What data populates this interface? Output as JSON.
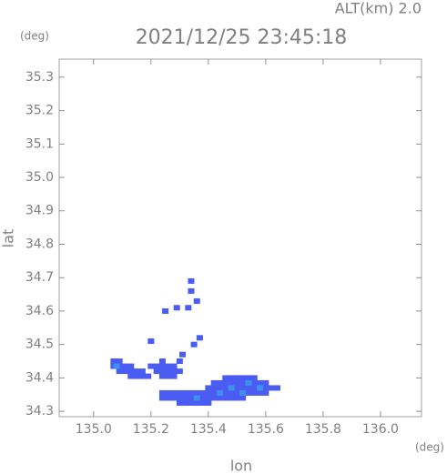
{
  "chart_data": {
    "type": "scatter",
    "title": "2021/12/25 23:45:18",
    "subtitle": "ALT(km) 2.0",
    "x_label": "lon",
    "y_label": "lat",
    "x_unit": "(deg)",
    "y_unit": "(deg)",
    "xlim": [
      134.88,
      136.143
    ],
    "ylim": [
      34.284,
      35.354
    ],
    "xticks": [
      {
        "value": 135,
        "label": "135.0"
      },
      135.2,
      135.4,
      135.6,
      135.8,
      {
        "value": 136,
        "label": "136.0"
      }
    ],
    "yticks": [
      34.3,
      34.4,
      34.5,
      34.6,
      34.7,
      34.8,
      34.9,
      {
        "value": 35,
        "label": "35.0"
      },
      35.1,
      35.2,
      35.3
    ],
    "grid": false,
    "series": [
      {
        "color": "#4a5cf2",
        "x": [
          135.46,
          135.48,
          135.5,
          135.52,
          135.54,
          135.56,
          135.42,
          135.44,
          135.46,
          135.48,
          135.5,
          135.52,
          135.54,
          135.56,
          135.58,
          135.6,
          135.4,
          135.42,
          135.44,
          135.46,
          135.48,
          135.5,
          135.52,
          135.54,
          135.56,
          135.58,
          135.6,
          135.62,
          135.64,
          135.4,
          135.42,
          135.44,
          135.46,
          135.48,
          135.5,
          135.52,
          135.54,
          135.56,
          135.58,
          135.6,
          135.38,
          135.4,
          135.42,
          135.44,
          135.46,
          135.48,
          135.5,
          135.52,
          135.24,
          135.26,
          135.28,
          135.3,
          135.32,
          135.34,
          135.36,
          135.38,
          135.24,
          135.26,
          135.28,
          135.3,
          135.32,
          135.34,
          135.36,
          135.3,
          135.32,
          135.34,
          135.36,
          135.38,
          135.4,
          135.07,
          135.09,
          135.07,
          135.09,
          135.11,
          135.13,
          135.09,
          135.11,
          135.13,
          135.15,
          135.17,
          135.13,
          135.15,
          135.17,
          135.19,
          135.24,
          135.3,
          135.2,
          135.22,
          135.24,
          135.26,
          135.28,
          135.22,
          135.24,
          135.26,
          135.28,
          135.3,
          135.24,
          135.26,
          135.28,
          135.34,
          135.34,
          135.33,
          135.29,
          135.25,
          135.36,
          135.2,
          135.37,
          135.35,
          135.31
        ],
        "y": [
          34.4,
          34.4,
          34.4,
          34.4,
          34.4,
          34.4,
          34.385,
          34.385,
          34.385,
          34.385,
          34.385,
          34.385,
          34.385,
          34.385,
          34.385,
          34.385,
          34.37,
          34.37,
          34.37,
          34.37,
          34.37,
          34.37,
          34.37,
          34.37,
          34.37,
          34.37,
          34.37,
          34.37,
          34.37,
          34.355,
          34.355,
          34.355,
          34.355,
          34.355,
          34.355,
          34.355,
          34.355,
          34.355,
          34.355,
          34.355,
          34.34,
          34.34,
          34.34,
          34.34,
          34.34,
          34.34,
          34.34,
          34.34,
          34.355,
          34.355,
          34.355,
          34.355,
          34.355,
          34.355,
          34.355,
          34.355,
          34.34,
          34.34,
          34.34,
          34.34,
          34.34,
          34.34,
          34.34,
          34.325,
          34.325,
          34.325,
          34.325,
          34.325,
          34.325,
          34.45,
          34.45,
          34.435,
          34.435,
          34.435,
          34.435,
          34.42,
          34.42,
          34.42,
          34.42,
          34.42,
          34.405,
          34.405,
          34.405,
          34.405,
          34.45,
          34.45,
          34.435,
          34.435,
          34.435,
          34.435,
          34.435,
          34.42,
          34.42,
          34.42,
          34.42,
          34.42,
          34.405,
          34.405,
          34.405,
          34.69,
          34.66,
          34.61,
          34.61,
          34.6,
          34.63,
          34.51,
          34.52,
          34.5,
          34.47
        ]
      },
      {
        "color": "#3f8ff0",
        "x": [
          135.48,
          135.54,
          135.58,
          135.44,
          135.08,
          135.36,
          135.52
        ],
        "y": [
          34.37,
          34.385,
          34.37,
          34.355,
          34.435,
          34.34,
          34.355
        ]
      }
    ]
  }
}
